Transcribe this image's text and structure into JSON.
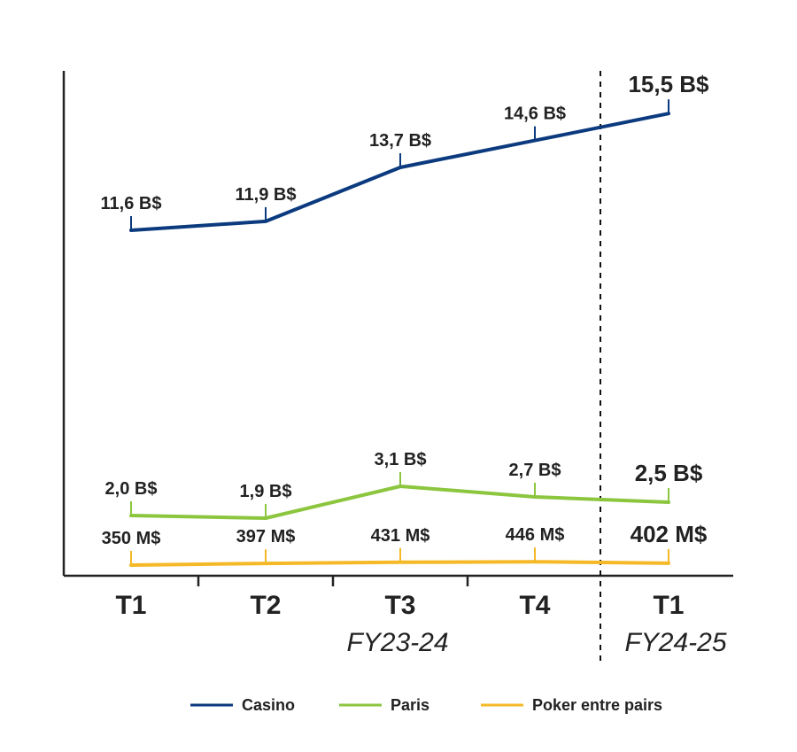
{
  "chart_data": {
    "type": "line",
    "title": "",
    "xlabel": "",
    "ylabel": "",
    "categories": [
      "T1",
      "T2",
      "T3",
      "T4",
      "T1"
    ],
    "periods": [
      {
        "label": "FY23-24",
        "from": 0,
        "to": 3
      },
      {
        "label": "FY24-25",
        "from": 4,
        "to": 4
      }
    ],
    "ylim": [
      0,
      17
    ],
    "grid": false,
    "legend": "bottom",
    "series": [
      {
        "name": "Casino",
        "color": "#0b3a7e",
        "values": [
          11.6,
          11.9,
          13.7,
          14.6,
          15.5
        ],
        "labels": [
          "11,6 B$",
          "11,9 B$",
          "13,7 B$",
          "14,6 B$",
          "15,5 B$"
        ]
      },
      {
        "name": "Paris",
        "color": "#8cc63f",
        "values": [
          2.0,
          1.9,
          3.1,
          2.7,
          2.5
        ],
        "labels": [
          "2,0 B$",
          "1,9 B$",
          "3,1 B$",
          "2,7 B$",
          "2,5 B$"
        ]
      },
      {
        "name": "Poker entre pairs",
        "color": "#f5b827",
        "values": [
          0.35,
          0.397,
          0.431,
          0.446,
          0.402
        ],
        "labels": [
          "350 M$",
          "397 M$",
          "431 M$",
          "446 M$",
          "402 M$"
        ]
      }
    ]
  }
}
